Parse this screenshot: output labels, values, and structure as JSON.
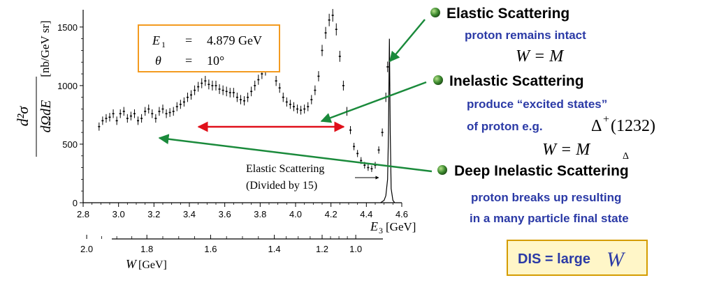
{
  "chart_data": {
    "type": "scatter",
    "title": "",
    "xlabel": "E3 [GeV]",
    "ylabel": "d²σ/dΩdE [nb/GeV sr]",
    "xlim": [
      2.8,
      4.6
    ],
    "ylim": [
      0,
      1600
    ],
    "x_ticks": [
      2.8,
      3.0,
      3.2,
      3.4,
      3.6,
      3.8,
      4.0,
      4.2,
      4.4,
      4.6
    ],
    "y_ticks": [
      0,
      500,
      1000,
      1500
    ],
    "w_axis": {
      "label": "W [GeV]",
      "ticks": [
        2.0,
        1.8,
        1.6,
        1.4,
        1.2,
        1.0
      ]
    },
    "grid": false,
    "series": [
      {
        "points": [
          [
            2.89,
            650
          ],
          [
            2.91,
            700
          ],
          [
            2.93,
            720
          ],
          [
            2.95,
            730
          ],
          [
            2.97,
            760
          ],
          [
            2.99,
            700
          ],
          [
            3.01,
            760
          ],
          [
            3.03,
            780
          ],
          [
            3.05,
            720
          ],
          [
            3.07,
            740
          ],
          [
            3.09,
            760
          ],
          [
            3.11,
            700
          ],
          [
            3.13,
            720
          ],
          [
            3.15,
            780
          ],
          [
            3.17,
            800
          ],
          [
            3.19,
            760
          ],
          [
            3.21,
            720
          ],
          [
            3.23,
            780
          ],
          [
            3.25,
            800
          ],
          [
            3.27,
            760
          ],
          [
            3.29,
            770
          ],
          [
            3.31,
            780
          ],
          [
            3.33,
            820
          ],
          [
            3.35,
            840
          ],
          [
            3.37,
            860
          ],
          [
            3.39,
            900
          ],
          [
            3.41,
            920
          ],
          [
            3.43,
            960
          ],
          [
            3.45,
            990
          ],
          [
            3.47,
            1020
          ],
          [
            3.49,
            1040
          ],
          [
            3.51,
            1010
          ],
          [
            3.53,
            1000
          ],
          [
            3.55,
            1000
          ],
          [
            3.57,
            970
          ],
          [
            3.59,
            960
          ],
          [
            3.61,
            950
          ],
          [
            3.63,
            940
          ],
          [
            3.65,
            940
          ],
          [
            3.67,
            900
          ],
          [
            3.69,
            880
          ],
          [
            3.71,
            870
          ],
          [
            3.73,
            900
          ],
          [
            3.75,
            950
          ],
          [
            3.77,
            1000
          ],
          [
            3.79,
            1050
          ],
          [
            3.81,
            1100
          ],
          [
            3.83,
            1130
          ],
          [
            3.85,
            1180
          ],
          [
            3.87,
            1160
          ],
          [
            3.89,
            1040
          ],
          [
            3.91,
            980
          ],
          [
            3.93,
            900
          ],
          [
            3.95,
            860
          ],
          [
            3.97,
            840
          ],
          [
            3.99,
            820
          ],
          [
            4.01,
            800
          ],
          [
            4.03,
            790
          ],
          [
            4.05,
            800
          ],
          [
            4.07,
            820
          ],
          [
            4.09,
            880
          ],
          [
            4.11,
            960
          ],
          [
            4.13,
            1080
          ],
          [
            4.15,
            1300
          ],
          [
            4.17,
            1450
          ],
          [
            4.19,
            1560
          ],
          [
            4.21,
            1600
          ],
          [
            4.23,
            1480
          ],
          [
            4.25,
            1250
          ],
          [
            4.27,
            1000
          ],
          [
            4.29,
            780
          ],
          [
            4.31,
            620
          ],
          [
            4.33,
            480
          ],
          [
            4.35,
            420
          ],
          [
            4.37,
            360
          ],
          [
            4.39,
            320
          ],
          [
            4.41,
            300
          ],
          [
            4.43,
            290
          ],
          [
            4.45,
            320
          ],
          [
            4.47,
            450
          ],
          [
            4.49,
            600
          ],
          [
            4.51,
            900
          ],
          [
            4.52,
            1160
          ]
        ]
      },
      {
        "label": "Elastic Scattering (Divided by 15)",
        "type": "line",
        "x": [
          4.48,
          4.5,
          4.51,
          4.52,
          4.525,
          4.53,
          4.535,
          4.54,
          4.55,
          4.56
        ],
        "y": [
          0,
          20,
          60,
          200,
          600,
          1400,
          600,
          120,
          20,
          0
        ]
      }
    ],
    "annotations": {
      "box_line1": {
        "lhs": "E",
        "sub": "1",
        "eq": "=",
        "rhs": "4.879 GeV"
      },
      "box_line2": {
        "lhs": "θ",
        "eq": "=",
        "rhs": "10°"
      },
      "elastic_line1": "Elastic Scattering",
      "elastic_line2": "(Divided by 15)"
    }
  },
  "notes": {
    "elastic": {
      "title": "Elastic Scattering",
      "sub": "proton remains intact",
      "eq": "W = M"
    },
    "inelastic": {
      "title": "Inelastic Scattering",
      "sub1": "produce “excited states”",
      "sub2": "of proton e.g.",
      "delta": "Δ",
      "delta_sup": "+",
      "delta_val": "(1232)",
      "eq": "W = M",
      "eq_sub": "Δ"
    },
    "dis": {
      "title": "Deep Inelastic Scattering",
      "sub1": "proton breaks up resulting",
      "sub2": "in a many particle final state"
    },
    "dis_box": {
      "text": "DIS = large",
      "w": "W"
    }
  },
  "colors": {
    "blue_text": "#2b3aa6",
    "green_arrow": "#1a8a3b",
    "red_arrow": "#e0101a",
    "orange_box": "#f39a1f",
    "dis_box_bg": "#fff6c8",
    "dis_box_border": "#d49c00",
    "bullet": "#3c8a2e"
  }
}
